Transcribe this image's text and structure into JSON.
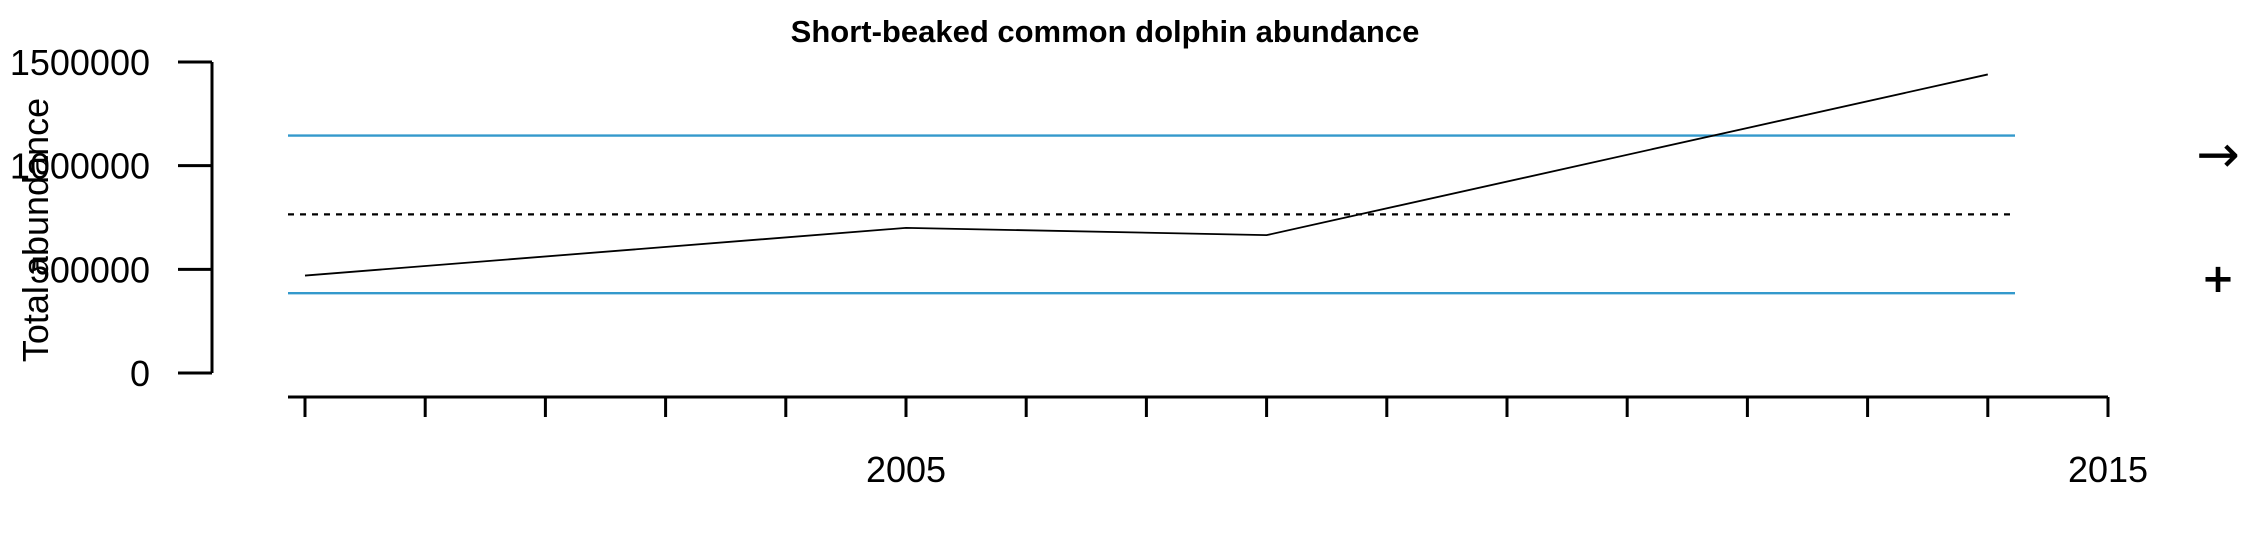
{
  "chart_data": {
    "type": "line",
    "title": "Short-beaked common dolphin abundance",
    "xlabel": "",
    "ylabel": "Total abundance",
    "xlim": [
      2000,
      2015
    ],
    "ylim": [
      0,
      1500000
    ],
    "x_ticks": [
      2000,
      2001,
      2002,
      2003,
      2004,
      2005,
      2006,
      2007,
      2008,
      2009,
      2010,
      2011,
      2012,
      2013,
      2014,
      2015
    ],
    "x_tick_labels": [
      {
        "value": 2005,
        "label": "2005"
      },
      {
        "value": 2015,
        "label": "2015"
      }
    ],
    "y_ticks": [
      0,
      500000,
      1000000,
      1500000
    ],
    "y_tick_labels": [
      "0",
      "500000",
      "1000000",
      "1500000"
    ],
    "series": [
      {
        "x": [
          2000,
          2005,
          2008,
          2014
        ],
        "y": [
          470000,
          700000,
          665000,
          1440000
        ],
        "color": "#000000",
        "style": "solid"
      }
    ],
    "reference_lines": [
      {
        "y": 1145000,
        "color": "#3399cc",
        "style": "solid"
      },
      {
        "y": 385000,
        "color": "#3399cc",
        "style": "solid"
      },
      {
        "y": 765000,
        "color": "#000000",
        "style": "dotted"
      }
    ],
    "grid": false,
    "legend": "none"
  },
  "side_glyphs": {
    "arrow": "→",
    "plus": "+",
    "arrow_icon": "arrow-right-icon",
    "plus_icon": "plus-icon"
  }
}
